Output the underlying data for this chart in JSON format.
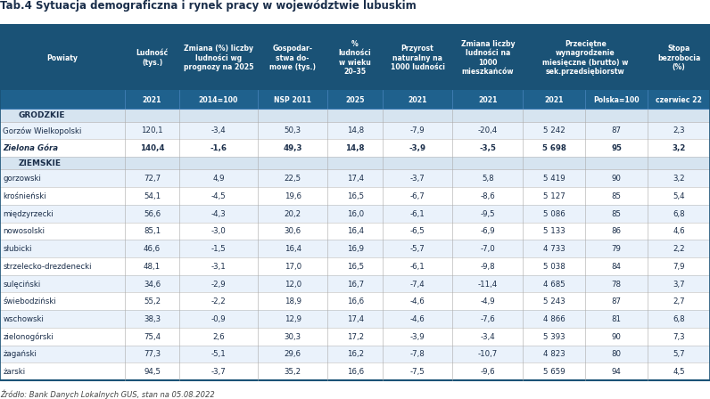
{
  "title": "Tab.4 Sytuacja demograficzna i rynek pracy w województwie lubuskim",
  "footnote": "Źródło: Bank Danych Lokalnych GUS, stan na 05.08.2022",
  "header_bg": "#1a5276",
  "subheader_bg": "#1f618d",
  "header_text_color": "#ffffff",
  "grodzkie_bg": "#d6e4f0",
  "ziemskie_bg": "#d6e4f0",
  "row_odd": "#eaf2fb",
  "row_even": "#ffffff",
  "text_color": "#1a2e4a",
  "bold_row_name": "Zielona Góra",
  "col_headers_top": [
    "Powiaty",
    "Ludność\n(tys.)",
    "Zmiana (%) liczby\nludności wg\nprognozy na 2025",
    "Gospodar-\nstwa do-\nmowe (tys.)",
    "%\nludności\nw wieku\n20–35",
    "Przyrost\nnaturalny na\n1000 ludności",
    "Zmiana liczby\nludności na\n1000\nmieszkańców",
    "Przeciętne\nwynagrodzenie\nmiesięczne (brutto) w\nsek.przedsiębiorstw",
    "Stopa\nbezrobocia\n(%)"
  ],
  "col_headers_bot": [
    "",
    "2021",
    "2014=100",
    "NSP 2011",
    "2025",
    "2021",
    "2021",
    "2021   Polska=100",
    "czerwiec 22"
  ],
  "col_widths_rel": [
    16,
    7,
    10,
    9,
    7,
    9,
    9,
    16,
    8
  ],
  "rows": [
    {
      "section": "GRODZKIE"
    },
    {
      "name": "Gorzów Wielkopolski",
      "bold": false,
      "values": [
        "120,1",
        "-3,4",
        "50,3",
        "14,8",
        "-7,9",
        "-20,4",
        "5 242 87",
        "2,3"
      ]
    },
    {
      "name": "Zielona Góra",
      "bold": true,
      "values": [
        "140,4",
        "-1,6",
        "49,3",
        "14,8",
        "-3,9",
        "-3,5",
        "5 698 95",
        "3,2"
      ]
    },
    {
      "section": "ZIEMSKIE"
    },
    {
      "name": "gorzowski",
      "bold": false,
      "values": [
        "72,7",
        "4,9",
        "22,5",
        "17,4",
        "-3,7",
        "5,8",
        "5 419 90",
        "3,2"
      ]
    },
    {
      "name": "krośnieński",
      "bold": false,
      "values": [
        "54,1",
        "-4,5",
        "19,6",
        "16,5",
        "-6,7",
        "-8,6",
        "5 127 85",
        "5,4"
      ]
    },
    {
      "name": "międzyrzecki",
      "bold": false,
      "values": [
        "56,6",
        "-4,3",
        "20,2",
        "16,0",
        "-6,1",
        "-9,5",
        "5 086 85",
        "6,8"
      ]
    },
    {
      "name": "nowosolski",
      "bold": false,
      "values": [
        "85,1",
        "-3,0",
        "30,6",
        "16,4",
        "-6,5",
        "-6,9",
        "5 133 86",
        "4,6"
      ]
    },
    {
      "name": "słubicki",
      "bold": false,
      "values": [
        "46,6",
        "-1,5",
        "16,4",
        "16,9",
        "-5,7",
        "-7,0",
        "4 733 79",
        "2,2"
      ]
    },
    {
      "name": "strzelecko-drezdenecki",
      "bold": false,
      "values": [
        "48,1",
        "-3,1",
        "17,0",
        "16,5",
        "-6,1",
        "-9,8",
        "5 038 84",
        "7,9"
      ]
    },
    {
      "name": "sulęciński",
      "bold": false,
      "values": [
        "34,6",
        "-2,9",
        "12,0",
        "16,7",
        "-7,4",
        "-11,4",
        "4 685 78",
        "3,7"
      ]
    },
    {
      "name": "świebodziński",
      "bold": false,
      "values": [
        "55,2",
        "-2,2",
        "18,9",
        "16,6",
        "-4,6",
        "-4,9",
        "5 243 87",
        "2,7"
      ]
    },
    {
      "name": "wschowski",
      "bold": false,
      "values": [
        "38,3",
        "-0,9",
        "12,9",
        "17,4",
        "-4,6",
        "-7,6",
        "4 866 81",
        "6,8"
      ]
    },
    {
      "name": "zielonogórski",
      "bold": false,
      "values": [
        "75,4",
        "2,6",
        "30,3",
        "17,2",
        "-3,9",
        "-3,4",
        "5 393 90",
        "7,3"
      ]
    },
    {
      "name": "żagański",
      "bold": false,
      "values": [
        "77,3",
        "-5,1",
        "29,6",
        "16,2",
        "-7,8",
        "-10,7",
        "4 823 80",
        "5,7"
      ]
    },
    {
      "name": "żarski",
      "bold": false,
      "values": [
        "94,5",
        "-3,7",
        "35,2",
        "16,6",
        "-7,5",
        "-9,6",
        "5 659 94",
        "4,5"
      ]
    }
  ]
}
